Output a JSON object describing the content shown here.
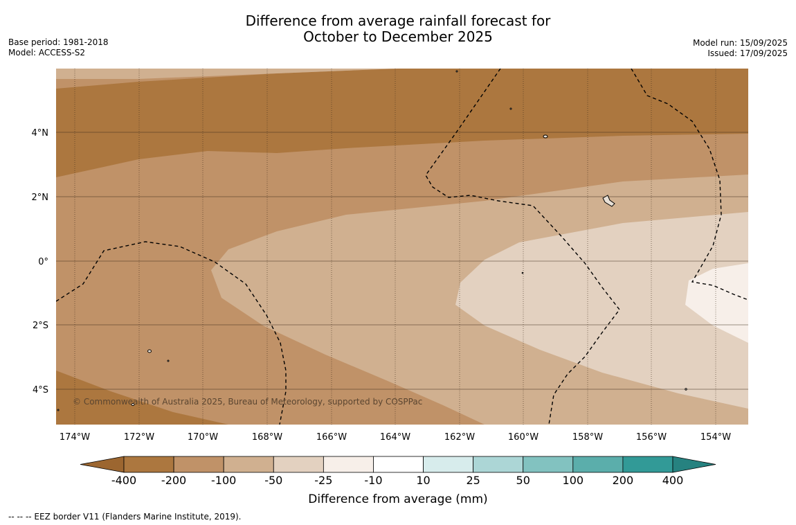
{
  "title": {
    "line1": "Difference from average rainfall forecast for",
    "line2": "October to December 2025"
  },
  "meta_left": {
    "base_period": "Base period: 1981-2018",
    "model": "Model: ACCESS-S2"
  },
  "meta_right": {
    "model_run": "Model run: 15/09/2025",
    "issued": "Issued: 17/09/2025"
  },
  "map": {
    "lat_labels": [
      "4°N",
      "2°N",
      "0°",
      "2°S",
      "4°S"
    ],
    "lon_labels": [
      "174°W",
      "172°W",
      "170°W",
      "168°W",
      "166°W",
      "164°W",
      "162°W",
      "160°W",
      "158°W",
      "156°W",
      "154°W"
    ],
    "copyright": "© Commonwealth of Australia 2025, Bureau of Meteorology, supported by COSPPac"
  },
  "legend": {
    "title": "Difference from average (mm)",
    "ticks": [
      "-400",
      "-200",
      "-100",
      "-50",
      "-25",
      "-10",
      "10",
      "25",
      "50",
      "100",
      "200",
      "400"
    ],
    "colors": [
      "#9c6630",
      "#ac773f",
      "#c09268",
      "#d0b090",
      "#e3d1c0",
      "#f7efe9",
      "#ffffff",
      "#d7ecec",
      "#acd6d6",
      "#82c2c0",
      "#5baeab",
      "#329a97",
      "#268280"
    ]
  },
  "footnote": "--  --  -- EEZ border V11 (Flanders Marine Institute, 2019)."
}
